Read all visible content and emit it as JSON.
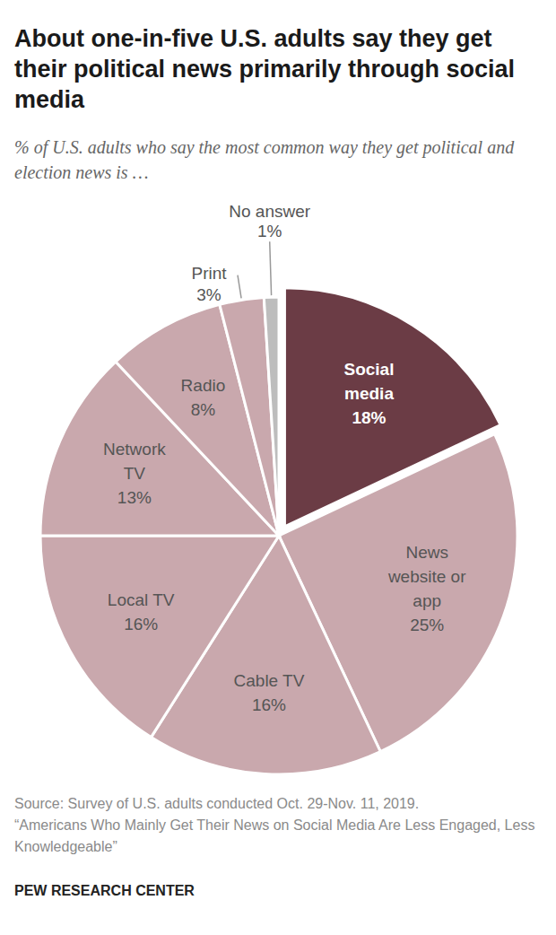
{
  "chart_data": {
    "type": "pie",
    "title": "About one-in-five U.S. adults say they get their political news primarily through social media",
    "subtitle": "% of U.S. adults who say the most common way they get political and election news is …",
    "categories": [
      "Social media",
      "News website or app",
      "Cable TV",
      "Local TV",
      "Network TV",
      "Radio",
      "Print",
      "No answer"
    ],
    "values": [
      18,
      25,
      16,
      16,
      13,
      8,
      3,
      1
    ],
    "value_labels": [
      "18%",
      "25%",
      "16%",
      "16%",
      "13%",
      "8%",
      "3%",
      "1%"
    ],
    "colors": [
      "#6b3c45",
      "#c9a8ad",
      "#c9a8ad",
      "#c9a8ad",
      "#c9a8ad",
      "#c9a8ad",
      "#c9a8ad",
      "#bdbdbd"
    ],
    "data_labels": true,
    "notes": [
      "Source: Survey of U.S. adults conducted Oct. 29-Nov. 11, 2019.",
      "“Americans Who Mainly Get Their News on Social Media Are Less Engaged, Less Knowledgeable”"
    ],
    "credit": "PEW RESEARCH CENTER"
  }
}
